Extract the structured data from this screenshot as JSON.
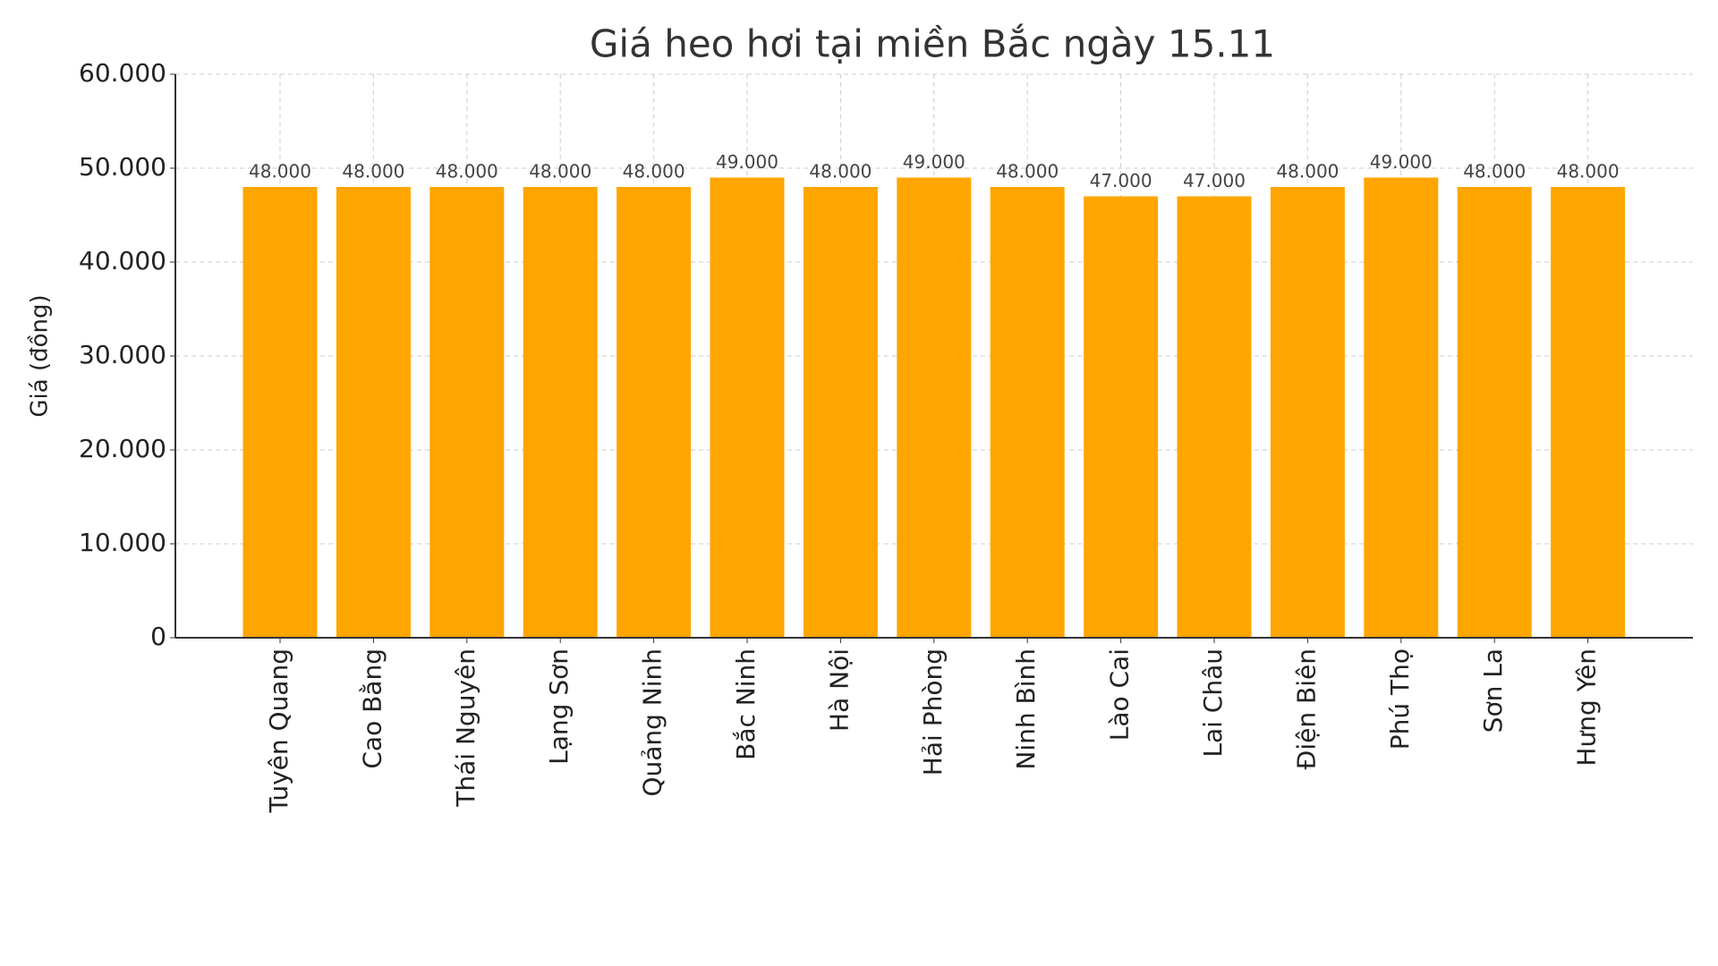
{
  "chart_data": {
    "type": "bar",
    "title": "Giá heo hơi tại miền Bắc ngày 15.11",
    "y_label": "Giá (đồng)",
    "categories": [
      "Tuyên Quang",
      "Cao Bằng",
      "Thái Nguyên",
      "Lạng Sơn",
      "Quảng Ninh",
      "Bắc Ninh",
      "Hà Nội",
      "Hải Phòng",
      "Ninh Bình",
      "Lào Cai",
      "Lai Châu",
      "Điện Biên",
      "Phú Thọ",
      "Sơn La",
      "Hưng Yên"
    ],
    "values": [
      48000,
      48000,
      48000,
      48000,
      48000,
      49000,
      48000,
      49000,
      48000,
      47000,
      47000,
      48000,
      49000,
      48000,
      48000
    ],
    "value_labels": [
      "48.000",
      "48.000",
      "48.000",
      "48.000",
      "48.000",
      "49.000",
      "48.000",
      "49.000",
      "48.000",
      "47.000",
      "47.000",
      "48.000",
      "49.000",
      "48.000",
      "48.000"
    ],
    "color": "#ffa500",
    "ylim": [
      0,
      60000
    ],
    "yticks": [
      0,
      {
        "value": 10000,
        "label": "10.000"
      },
      {
        "value": 20000,
        "label": "20.000"
      },
      {
        "value": 30000,
        "label": "30.000"
      },
      {
        "value": 40000,
        "label": "40.000"
      },
      {
        "value": 50000,
        "label": "50.000"
      },
      {
        "value": 60000,
        "label": "60.000"
      }
    ],
    "grid": true
  }
}
